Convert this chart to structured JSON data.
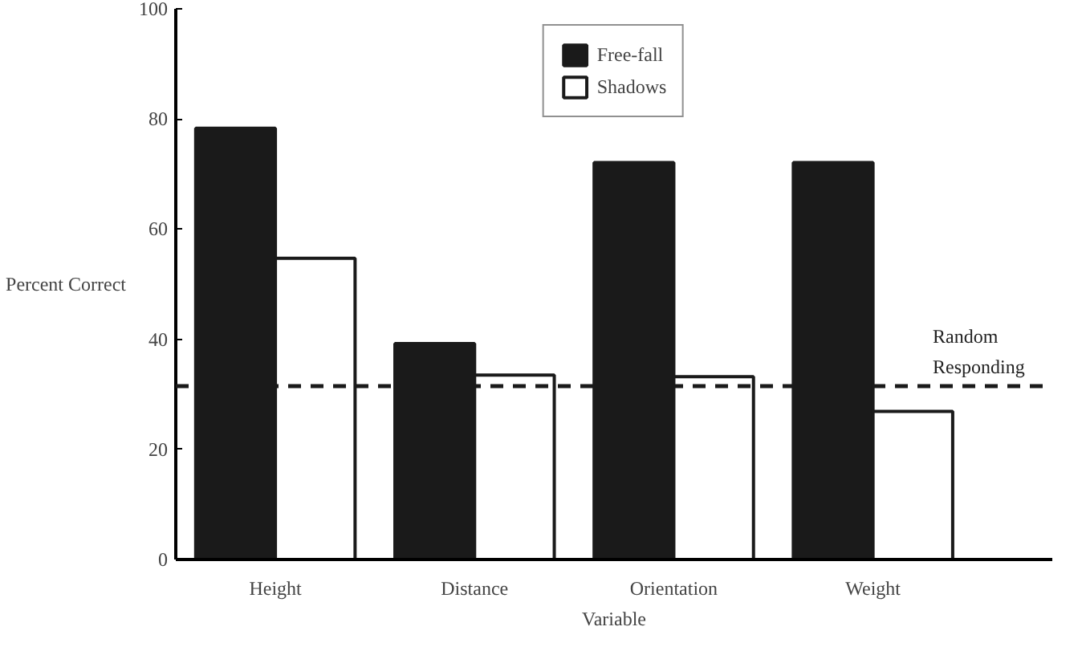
{
  "chart_data": {
    "type": "bar",
    "xlabel": "Variable",
    "ylabel": "Percent Correct",
    "categories": [
      "Height",
      "Distance",
      "Orientation",
      "Weight"
    ],
    "series": [
      {
        "name": "Free-fall",
        "color": "#1a1a1a",
        "values": [
          78.3,
          39.2,
          72.1,
          72.1
        ]
      },
      {
        "name": "Shadows",
        "color": "#ffffff",
        "values": [
          54.7,
          33.5,
          33.2,
          26.9
        ]
      }
    ],
    "ylim": [
      0,
      100
    ],
    "yticks": [
      0,
      20,
      40,
      60,
      80,
      100
    ],
    "ref_lines": [
      {
        "axis": "y",
        "value": 31.5,
        "label": "Random Responding",
        "line_style": "dashed",
        "color": "#1a1a1a"
      }
    ],
    "grid": false,
    "legend": "top"
  }
}
